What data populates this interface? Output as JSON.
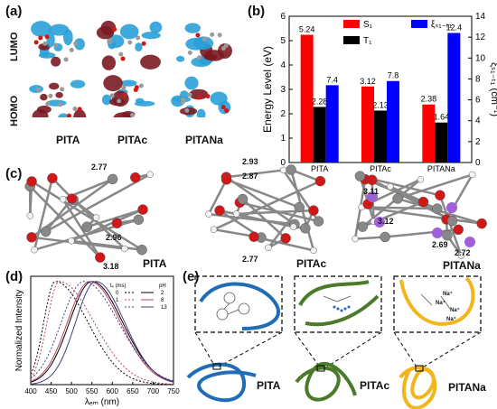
{
  "panel_a": {
    "label": "(a)",
    "row_labels": [
      "LUMO",
      "HOMO"
    ],
    "molecules": [
      "PITA",
      "PITAc",
      "PITANa"
    ]
  },
  "panel_b": {
    "label": "(b)",
    "legend": [
      "S₁",
      "T₁",
      "ξₛ₁₋ₜ₁"
    ]
  },
  "panel_c": {
    "label": "(c)",
    "molecules": [
      "PITA",
      "PITAc",
      "PITANa"
    ],
    "distances": [
      "2.77",
      "2.96",
      "3.18",
      "2.93",
      "2.87",
      "2.77",
      "3.11",
      "3.12",
      "2.69",
      "2.72"
    ]
  },
  "panel_d": {
    "label": "(d)",
    "legend_header_tc": "tₑ (ms)",
    "legend_header_ph": "pH",
    "legend_rows": [
      [
        "0",
        "2"
      ],
      [
        "1",
        "8"
      ],
      [
        "",
        "13"
      ]
    ]
  },
  "panel_e": {
    "label": "(e)",
    "molecules": [
      "PITA",
      "PITAc",
      "PITANa"
    ],
    "ions": [
      "Na⁺",
      "Na⁺",
      "Na⁺",
      "Na⁺"
    ]
  },
  "chart_data": [
    {
      "type": "bar",
      "panel": "b",
      "categories": [
        "PITA",
        "PITAc",
        "PITANa"
      ],
      "series": [
        {
          "name": "S₁",
          "values": [
            5.24,
            3.12,
            2.38
          ],
          "color": "#ff0000",
          "axis": "left"
        },
        {
          "name": "T₁",
          "values": [
            2.28,
            2.13,
            1.64
          ],
          "color": "#000000",
          "axis": "left"
        },
        {
          "name": "ξₛ₁₋ₜ₁",
          "values": [
            7.4,
            7.8,
            12.4
          ],
          "color": "#0000ff",
          "axis": "right"
        }
      ],
      "data_labels": [
        "5.24",
        "2.28",
        "7.4",
        "3.12",
        "2.13",
        "7.8",
        "2.38",
        "1.64",
        "12.4"
      ],
      "ylabel": "Energy Level (eV)",
      "ylim": [
        0,
        6
      ],
      "yticks": [
        "0",
        "1",
        "2",
        "3",
        "4",
        "5",
        "6"
      ],
      "ylabel_right": "ξₛ₁₋ₜ₁ (cm⁻¹)",
      "ylim_right": [
        0,
        14
      ],
      "yticks_right": [
        "0",
        "2",
        "4",
        "6",
        "8",
        "10",
        "12",
        "14"
      ]
    },
    {
      "type": "line",
      "panel": "d",
      "xlabel": "λₑₘ (nm)",
      "ylabel": "Normalized Intensity",
      "xlim": [
        400,
        750
      ],
      "xticks": [
        "400",
        "450",
        "500",
        "550",
        "600",
        "650",
        "700",
        "750"
      ],
      "ylim": [
        0,
        1.05
      ],
      "series": [
        {
          "name": "2",
          "dash": "solid",
          "color": "#000000",
          "peak": 550,
          "width_l": 55,
          "width_r": 75
        },
        {
          "name": "8",
          "dash": "solid",
          "color": "#c04060",
          "peak": 545,
          "width_l": 55,
          "width_r": 75
        },
        {
          "name": "13",
          "dash": "solid",
          "color": "#404080",
          "peak": 560,
          "width_l": 50,
          "width_r": 70
        },
        {
          "name": "2",
          "dash": "dotted",
          "color": "#000000",
          "peak": 460,
          "width_l": 28,
          "width_r": 80
        },
        {
          "name": "8",
          "dash": "dotted",
          "color": "#c04060",
          "peak": 470,
          "width_l": 30,
          "width_r": 85
        },
        {
          "name": "13",
          "dash": "dotted",
          "color": "#404080",
          "peak": 530,
          "width_l": 55,
          "width_r": 85
        }
      ]
    }
  ]
}
